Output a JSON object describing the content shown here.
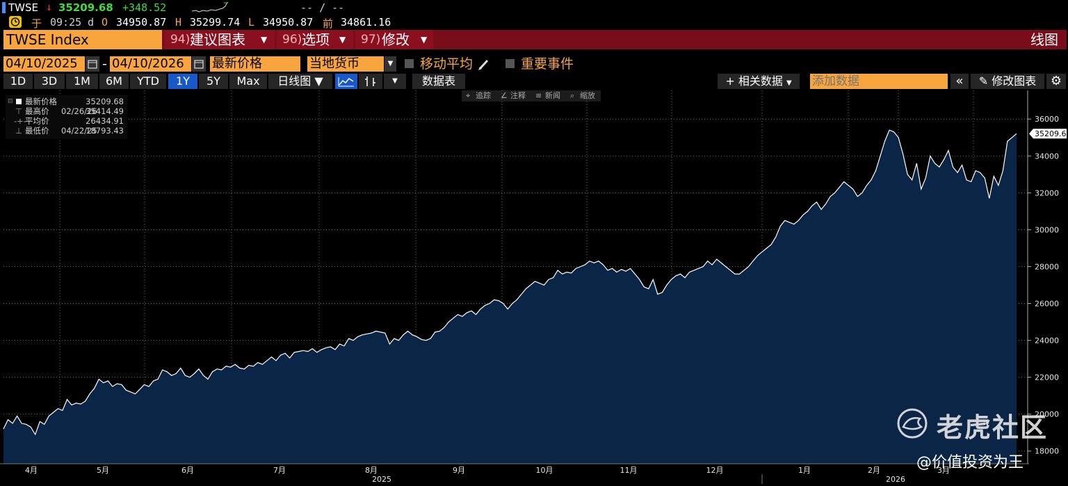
{
  "ticker": {
    "symbol": "TWSE",
    "arrow": "↓",
    "last": "35209.68",
    "change": "+348.52",
    "dashes": "-- / --",
    "clock_glyph": "于",
    "time": "09:25",
    "d_label": "d",
    "o_label": "O",
    "open": "34950.87",
    "h_label": "H",
    "high": "35299.74",
    "l_label": "L",
    "low": "34950.87",
    "prev_label": "前",
    "prev": "34861.16"
  },
  "titlebar": {
    "name": "TWSE Index",
    "menu1_num": "94)",
    "menu1_label": "建议图表",
    "menu2_num": "96)",
    "menu2_label": "选项",
    "menu3_num": "97)",
    "menu3_label": "修改",
    "right_label": "线图"
  },
  "controls": {
    "date_from": "04/10/2025",
    "date_sep": "-",
    "date_to": "04/10/2026",
    "field": "最新价格",
    "currency": "当地货币",
    "moving_avg": "移动平均",
    "events": "重要事件"
  },
  "tabs": {
    "ranges": [
      "1D",
      "3D",
      "1M",
      "6M",
      "YTD",
      "1Y",
      "5Y",
      "Max"
    ],
    "active": "1Y",
    "freq": "日线图 ▼",
    "table": "数据表",
    "related": "相关数据",
    "add_data_placeholder": "添加数据",
    "edit_chart": "修改图表"
  },
  "tools": {
    "track": "追踪",
    "annotate": "注释",
    "news": "新闻",
    "zoom": "缩放"
  },
  "legend": {
    "rows": [
      {
        "label": "最新价格",
        "date": "",
        "value": "35209.68"
      },
      {
        "label": "最高价",
        "date": "02/26/26",
        "value": "35414.49"
      },
      {
        "label": "平均价",
        "date": "",
        "value": "26434.91"
      },
      {
        "label": "最低价",
        "date": "04/22/25",
        "value": "18793.43"
      }
    ]
  },
  "colors": {
    "accent": "#f7a53c",
    "title_bar": "#7a0d1a",
    "area_fill": "#0b2547",
    "line": "#ffffff",
    "tab_active": "#1858c9",
    "up": "#3ddc3d",
    "down": "#ff3b3b"
  },
  "chart_data": {
    "type": "area",
    "y_ticks": [
      "18000",
      "20000",
      "22000",
      "24000",
      "26000",
      "28000",
      "30000",
      "32000",
      "34000",
      "36000"
    ],
    "ylim": [
      17500,
      36800
    ],
    "x_labels": [
      "4月",
      "5月",
      "6月",
      "7月",
      "8月",
      "9月",
      "10月",
      "11月",
      "12月",
      "1月",
      "2月",
      "3月"
    ],
    "year_labels": [
      "2025",
      "2026"
    ],
    "last_label": "35209.68",
    "series": [
      {
        "values": [
          19200,
          19700,
          19500,
          19900,
          19500,
          19450,
          19300,
          18900,
          19600,
          19450,
          19900,
          20100,
          20300,
          20200,
          20800,
          20500,
          20600,
          20550,
          20700,
          21100,
          21400,
          21900,
          21700,
          21800,
          21500,
          21650,
          21600,
          21300,
          21200,
          21100,
          21350,
          21600,
          21500,
          21800,
          21900,
          22400,
          22300,
          22100,
          22200,
          22500,
          22100,
          22000,
          22200,
          22450,
          22100,
          21900,
          22300,
          22450,
          22400,
          22600,
          22550,
          22700,
          22500,
          22450,
          22650,
          22600,
          22800,
          22700,
          22900,
          23100,
          22900,
          23200,
          23300,
          23050,
          23350,
          23400,
          23450,
          23400,
          23550,
          23350,
          23500,
          23600,
          23650,
          23500,
          23800,
          23700,
          24100,
          24000,
          24200,
          24300,
          24350,
          24400,
          24500,
          24450,
          24400,
          23800,
          24100,
          24000,
          24300,
          24500,
          24300,
          24200,
          24050,
          24000,
          24100,
          24450,
          24500,
          24700,
          25000,
          25200,
          25400,
          25300,
          25500,
          25600,
          25400,
          25700,
          25900,
          26000,
          26200,
          26150,
          26000,
          25700,
          26000,
          26200,
          26500,
          26800,
          27000,
          27200,
          27100,
          27000,
          27300,
          27400,
          27800,
          27600,
          27700,
          27650,
          27900,
          28000,
          28100,
          28300,
          28200,
          28300,
          28100,
          27800,
          27900,
          27700,
          27850,
          27750,
          27900,
          27600,
          27300,
          26900,
          26800,
          27300,
          26500,
          26600,
          27000,
          27300,
          27500,
          27600,
          27400,
          27700,
          27800,
          27900,
          28000,
          28300,
          28100,
          28400,
          28200,
          28000,
          27800,
          27600,
          27600,
          27800,
          28000,
          28300,
          28600,
          28800,
          29000,
          29200,
          29600,
          30200,
          30500,
          30400,
          30300,
          30500,
          30800,
          31000,
          31300,
          31500,
          31100,
          31400,
          31800,
          32000,
          32300,
          32600,
          32400,
          32200,
          31800,
          32000,
          32400,
          32700,
          33200,
          34000,
          34800,
          35400,
          35300,
          35000,
          34100,
          33000,
          32700,
          33600,
          32200,
          32800,
          34000,
          33600,
          33400,
          33800,
          34300,
          33400,
          33100,
          33500,
          32700,
          32600,
          33200,
          33100,
          32800,
          31700,
          32900,
          32400,
          33200,
          34800,
          35000,
          35209
        ]
      }
    ]
  }
}
